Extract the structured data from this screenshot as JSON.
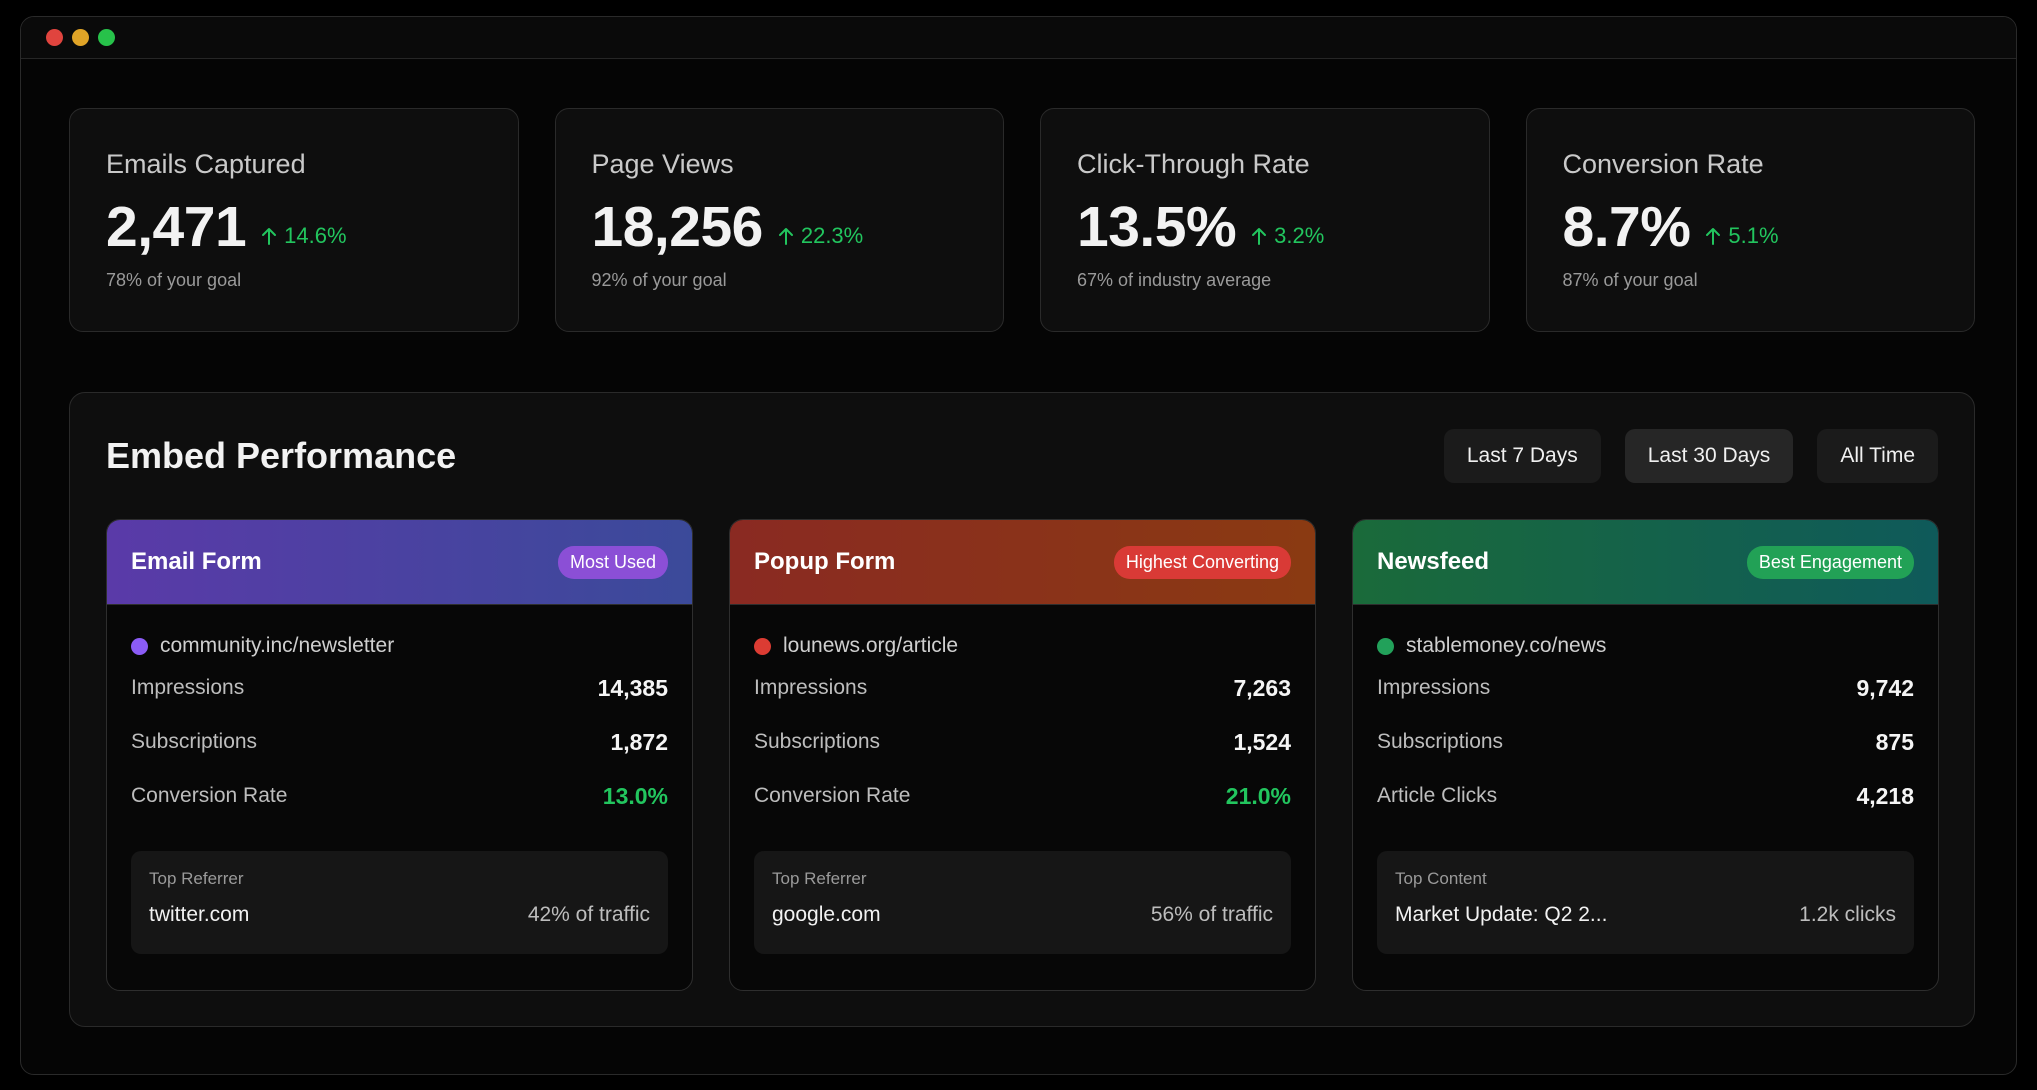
{
  "window": {
    "controls": [
      {
        "name": "close",
        "color": "#e0443e"
      },
      {
        "name": "minimize",
        "color": "#e0a427"
      },
      {
        "name": "maximize",
        "color": "#27c24a"
      }
    ]
  },
  "stats": [
    {
      "title": "Emails Captured",
      "value": "2,471",
      "change": "14.6%",
      "sub": "78% of your goal",
      "icon": "arrow-up-icon"
    },
    {
      "title": "Page Views",
      "value": "18,256",
      "change": "22.3%",
      "sub": "92% of your goal",
      "icon": "arrow-up-icon"
    },
    {
      "title": "Click-Through Rate",
      "value": "13.5%",
      "change": "3.2%",
      "sub": "67% of industry average",
      "icon": "arrow-up-icon"
    },
    {
      "title": "Conversion Rate",
      "value": "8.7%",
      "change": "5.1%",
      "sub": "87% of your goal",
      "icon": "arrow-up-icon"
    }
  ],
  "panel": {
    "title": "Embed Performance",
    "ranges": [
      "Last 7 Days",
      "Last 30 Days",
      "All Time"
    ],
    "active_range": "Last 30 Days"
  },
  "embeds": [
    {
      "name": "Email Form",
      "badge": "Most Used",
      "gradient": [
        "#5a3aa8",
        "#3b4a9a"
      ],
      "badge_color": "#8b4fd6",
      "dot_color": "#8b5cf6",
      "url": "community.inc/newsletter",
      "metrics": [
        {
          "label": "Impressions",
          "value": "14,385"
        },
        {
          "label": "Subscriptions",
          "value": "1,872"
        },
        {
          "label": "Conversion Rate",
          "value": "13.0%",
          "highlight": true
        }
      ],
      "ref_label": "Top Referrer",
      "ref_name": "twitter.com",
      "ref_value": "42% of traffic"
    },
    {
      "name": "Popup Form",
      "badge": "Highest Converting",
      "gradient": [
        "#8a2a22",
        "#8a3a12"
      ],
      "badge_color": "#d93a36",
      "dot_color": "#dc3c33",
      "url": "lounews.org/article",
      "metrics": [
        {
          "label": "Impressions",
          "value": "7,263"
        },
        {
          "label": "Subscriptions",
          "value": "1,524"
        },
        {
          "label": "Conversion Rate",
          "value": "21.0%",
          "highlight": true
        }
      ],
      "ref_label": "Top Referrer",
      "ref_name": "google.com",
      "ref_value": "56% of traffic"
    },
    {
      "name": "Newsfeed",
      "badge": "Best Engagement",
      "gradient": [
        "#1a6a3a",
        "#0f5a5a"
      ],
      "badge_color": "#22a156",
      "dot_color": "#22a15a",
      "url": "stablemoney.co/news",
      "metrics": [
        {
          "label": "Impressions",
          "value": "9,742"
        },
        {
          "label": "Subscriptions",
          "value": "875"
        },
        {
          "label": "Article Clicks",
          "value": "4,218"
        }
      ],
      "ref_label": "Top Content",
      "ref_name": "Market Update: Q2 2...",
      "ref_value": "1.2k clicks"
    }
  ]
}
